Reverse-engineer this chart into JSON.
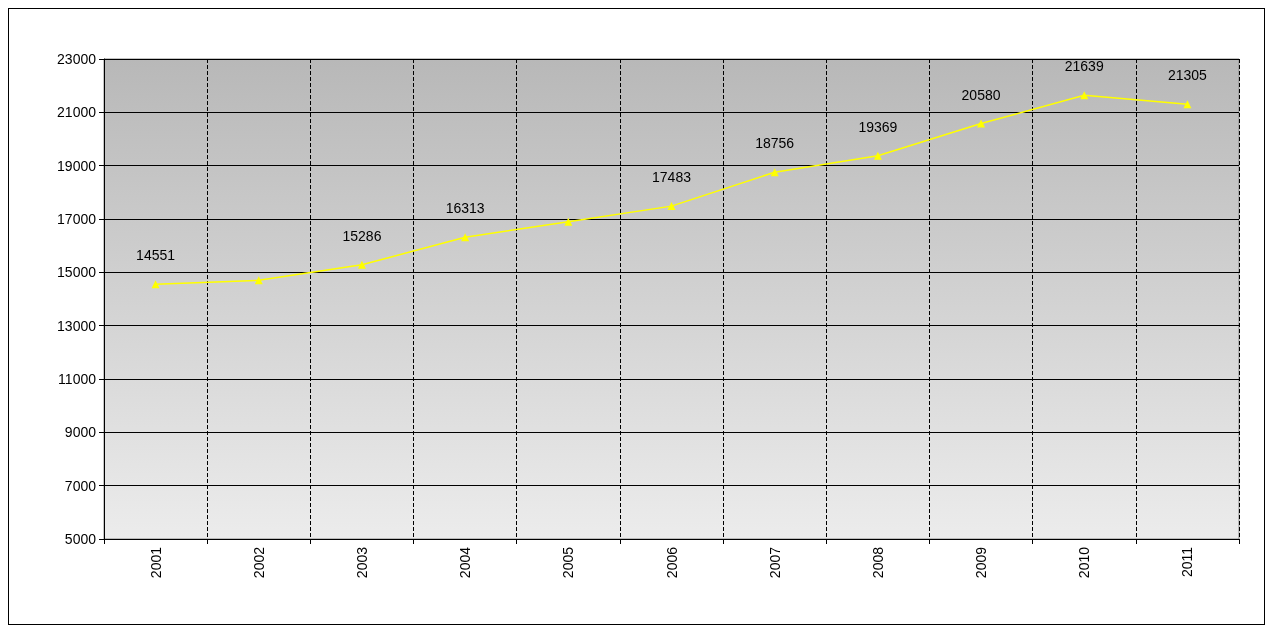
{
  "chart_data": {
    "type": "line",
    "categories": [
      "2001",
      "2002",
      "2003",
      "2004",
      "2005",
      "2006",
      "2007",
      "2008",
      "2009",
      "2010",
      "2011"
    ],
    "series": [
      {
        "color": "#ffff00",
        "values": [
          14551,
          14700,
          15286,
          16313,
          16900,
          17483,
          18756,
          19369,
          20580,
          21639,
          21305
        ],
        "value_labels": [
          "14551",
          null,
          "15286",
          "16313",
          null,
          "17483",
          "18756",
          "19369",
          "20580",
          "21639",
          "21305"
        ]
      }
    ],
    "ylim": [
      5000,
      23000
    ],
    "yticks": [
      5000,
      7000,
      9000,
      11000,
      13000,
      15000,
      17000,
      19000,
      21000,
      23000
    ],
    "grid": true,
    "marker": "triangle",
    "line_style": "solid"
  }
}
